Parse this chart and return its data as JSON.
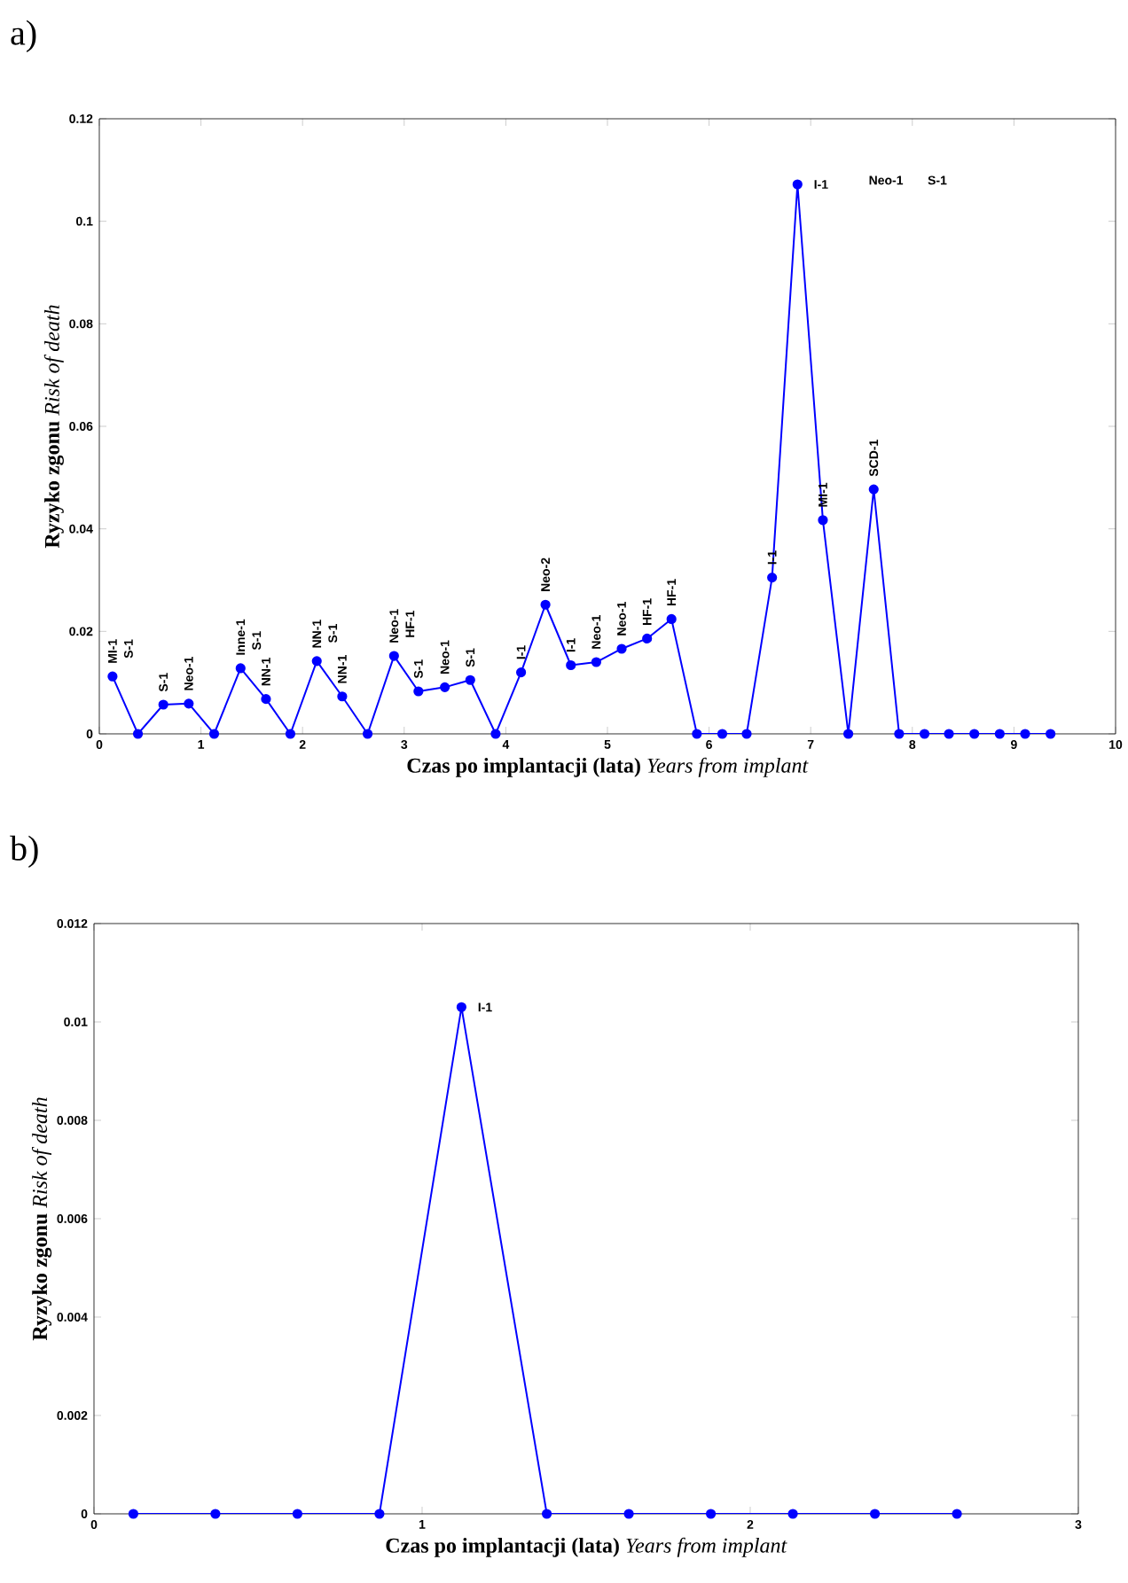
{
  "chart_data": [
    {
      "type": "line",
      "title": "a)",
      "xlabel": "**Czas po implantacji (lata)** *Years from implant*",
      "ylabel": "**Ryzyko zgonu** *Risk of death*",
      "x": [
        0.13,
        0.38,
        0.63,
        0.88,
        1.13,
        1.39,
        1.64,
        1.88,
        2.14,
        2.39,
        2.64,
        2.9,
        3.14,
        3.4,
        3.65,
        3.9,
        4.15,
        4.39,
        4.64,
        4.89,
        5.14,
        5.39,
        5.63,
        5.88,
        6.13,
        6.37,
        6.62,
        6.87,
        7.12,
        7.37,
        7.62,
        7.87,
        8.12,
        8.36,
        8.61,
        8.86,
        9.11,
        9.36
      ],
      "values": [
        0.0112,
        0,
        0.0057,
        0.0059,
        0,
        0.0128,
        0.0068,
        0,
        0.0142,
        0.0073,
        0,
        0.0152,
        0.0083,
        0.0091,
        0.0105,
        0,
        0.012,
        0.0252,
        0.0134,
        0.014,
        0.0166,
        0.0186,
        0.0224,
        0,
        0,
        0,
        0.0305,
        0.1072,
        0.0417,
        0,
        0.0477,
        0,
        0,
        0,
        0,
        0,
        0,
        0
      ],
      "color": "#0000ff",
      "marker": "circle",
      "line_style": "solid",
      "xlim": [
        0,
        10
      ],
      "ylim": [
        0,
        0.12
      ],
      "xticks": [
        0,
        1,
        2,
        3,
        4,
        5,
        6,
        7,
        8,
        9,
        10
      ],
      "yticks": [
        0,
        0.02,
        0.04,
        0.06,
        0.08,
        0.1,
        0.12
      ],
      "annotations": [
        {
          "text": "MI-1",
          "x": 0.13,
          "y": 0.0112
        },
        {
          "text": "S-1",
          "x": 0.13,
          "y": 0.0112
        },
        {
          "text": "S-1",
          "x": 0.63,
          "y": 0.0057
        },
        {
          "text": "Neo-1",
          "x": 0.88,
          "y": 0.0059
        },
        {
          "text": "Inne-1",
          "x": 1.39,
          "y": 0.0128
        },
        {
          "text": "S-1",
          "x": 1.39,
          "y": 0.0128
        },
        {
          "text": "NN-1",
          "x": 1.64,
          "y": 0.0068
        },
        {
          "text": "NN-1",
          "x": 2.14,
          "y": 0.0142
        },
        {
          "text": "S-1",
          "x": 2.14,
          "y": 0.0142
        },
        {
          "text": "NN-1",
          "x": 2.39,
          "y": 0.0073
        },
        {
          "text": "Neo-1",
          "x": 2.9,
          "y": 0.0152
        },
        {
          "text": "HF-1",
          "x": 2.9,
          "y": 0.0152
        },
        {
          "text": "S-1",
          "x": 3.14,
          "y": 0.0083
        },
        {
          "text": "Neo-1",
          "x": 3.4,
          "y": 0.0091
        },
        {
          "text": "S-1",
          "x": 3.65,
          "y": 0.0105
        },
        {
          "text": "I-1",
          "x": 4.15,
          "y": 0.012
        },
        {
          "text": "Neo-2",
          "x": 4.39,
          "y": 0.0252
        },
        {
          "text": "I-1",
          "x": 4.64,
          "y": 0.0134
        },
        {
          "text": "Neo-1",
          "x": 4.89,
          "y": 0.014
        },
        {
          "text": "Neo-1",
          "x": 5.14,
          "y": 0.0166
        },
        {
          "text": "HF-1",
          "x": 5.39,
          "y": 0.0186
        },
        {
          "text": "HF-1",
          "x": 5.63,
          "y": 0.0224
        },
        {
          "text": "I-1",
          "x": 6.62,
          "y": 0.0305
        },
        {
          "text": "I-1",
          "x": 6.87,
          "y": 0.1072
        },
        "Neo-1",
        "S-1",
        {
          "text": "MI-1",
          "x": 7.12,
          "y": 0.0417
        },
        {
          "text": "SCD-1",
          "x": 7.62,
          "y": 0.0477
        }
      ]
    },
    {
      "type": "line",
      "title": "b)",
      "xlabel": "**Czas po implantacji (lata)** *Years from implant*",
      "ylabel": "**Ryzyko zgonu** *Risk of death*",
      "x": [
        0.12,
        0.37,
        0.62,
        0.87,
        1.12,
        1.38,
        1.63,
        1.88,
        2.13,
        2.38,
        2.63
      ],
      "values": [
        0,
        0,
        0,
        0,
        0.0103,
        0,
        0,
        0,
        0,
        0,
        0
      ],
      "color": "#0000ff",
      "marker": "circle",
      "line_style": "solid",
      "xlim": [
        0,
        3
      ],
      "ylim": [
        0,
        0.012
      ],
      "xticks": [
        0,
        1,
        2,
        3
      ],
      "yticks": [
        0,
        0.002,
        0.004,
        0.006,
        0.008,
        0.01,
        0.012
      ],
      "annotations": [
        {
          "text": "I-1",
          "x": 1.12,
          "y": 0.0103
        }
      ]
    }
  ]
}
